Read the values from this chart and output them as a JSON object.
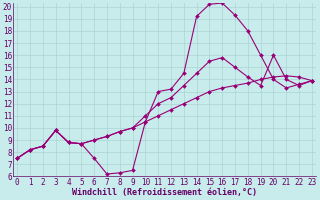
{
  "xlabel": "Windchill (Refroidissement éolien,°C)",
  "bg_color": "#c8ecec",
  "line_color": "#990077",
  "xlim": [
    0,
    23
  ],
  "ylim": [
    6,
    20
  ],
  "xticks": [
    0,
    1,
    2,
    3,
    4,
    5,
    6,
    7,
    8,
    9,
    10,
    11,
    12,
    13,
    14,
    15,
    16,
    17,
    18,
    19,
    20,
    21,
    22,
    23
  ],
  "yticks": [
    6,
    7,
    8,
    9,
    10,
    11,
    12,
    13,
    14,
    15,
    16,
    17,
    18,
    19,
    20
  ],
  "line1_x": [
    0,
    1,
    2,
    3,
    4,
    5,
    6,
    7,
    8,
    9,
    10,
    11,
    12,
    13,
    14,
    15,
    16,
    17,
    18,
    19,
    20,
    21,
    22,
    23
  ],
  "line1_y": [
    7.5,
    8.2,
    8.5,
    9.8,
    8.8,
    8.7,
    7.5,
    6.2,
    6.3,
    6.5,
    10.5,
    13.0,
    13.2,
    14.5,
    19.2,
    20.2,
    20.3,
    19.3,
    18.0,
    16.0,
    14.0,
    13.3,
    13.6,
    13.9
  ],
  "line2_x": [
    0,
    1,
    2,
    3,
    4,
    5,
    6,
    7,
    8,
    9,
    10,
    11,
    12,
    13,
    14,
    15,
    16,
    17,
    18,
    19,
    20,
    21,
    22,
    23
  ],
  "line2_y": [
    7.5,
    8.2,
    8.5,
    9.8,
    8.8,
    8.7,
    9.0,
    9.3,
    9.7,
    10.0,
    11.0,
    12.0,
    12.5,
    13.5,
    14.5,
    15.5,
    15.8,
    15.0,
    14.2,
    13.5,
    16.0,
    14.0,
    13.5,
    13.9
  ],
  "line3_x": [
    0,
    1,
    2,
    3,
    4,
    5,
    6,
    7,
    8,
    9,
    10,
    11,
    12,
    13,
    14,
    15,
    16,
    17,
    18,
    19,
    20,
    21,
    22,
    23
  ],
  "line3_y": [
    7.5,
    8.2,
    8.5,
    9.8,
    8.8,
    8.7,
    9.0,
    9.3,
    9.7,
    10.0,
    10.5,
    11.0,
    11.5,
    12.0,
    12.5,
    13.0,
    13.3,
    13.5,
    13.7,
    14.0,
    14.2,
    14.3,
    14.2,
    13.9
  ],
  "grid_color": "#aad4d4",
  "font_size": 5.5,
  "tick_color": "#660066"
}
